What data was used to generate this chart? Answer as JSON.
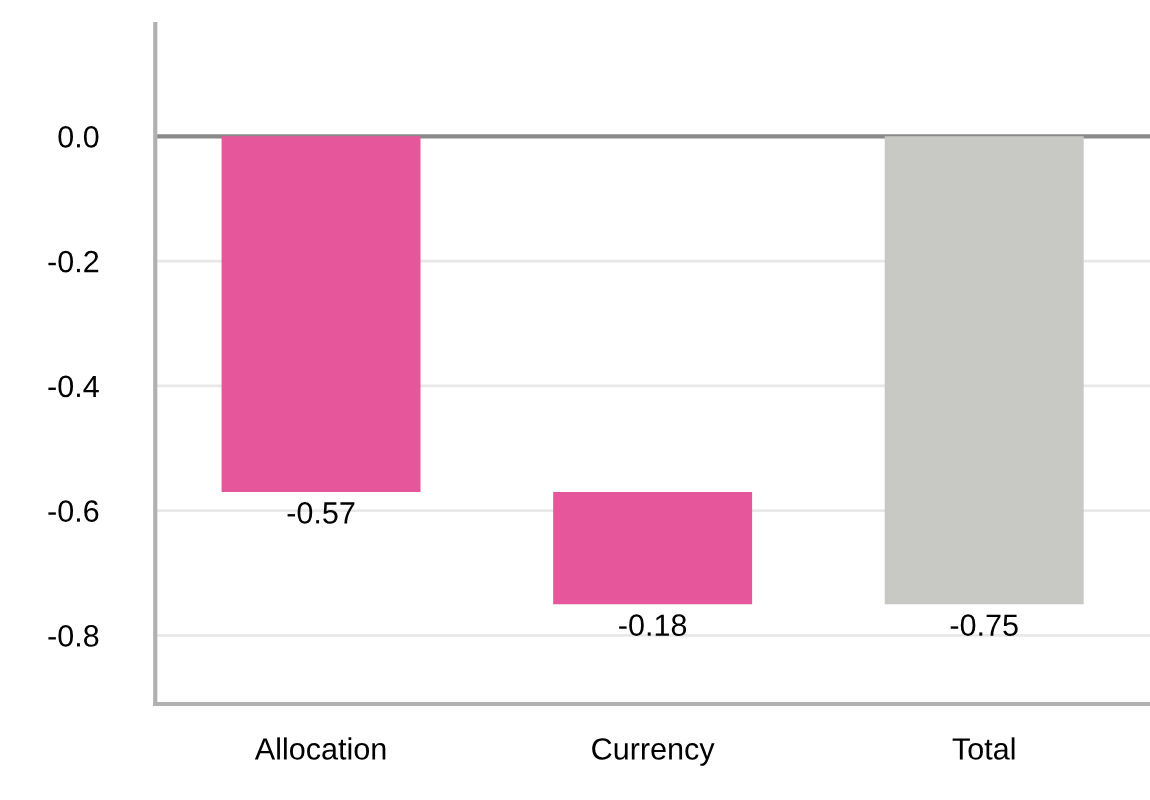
{
  "chart_data": {
    "type": "bar",
    "categories": [
      "Allocation",
      "Currency",
      "Total"
    ],
    "values": [
      -0.57,
      -0.18,
      -0.75
    ],
    "base": [
      0,
      -0.57,
      0
    ],
    "colors": [
      "#e5579a",
      "#e5579a",
      "#c8c8c5"
    ],
    "ylim": [
      -0.91,
      0.18
    ],
    "yticks": [
      {
        "value": 0,
        "label": "0.0"
      },
      -0.2,
      -0.4,
      -0.6,
      -0.8
    ],
    "grid": "y",
    "data_labels": true,
    "ref_lines": [
      {
        "axis": "y",
        "value": 0,
        "color": "#8a8a8a"
      }
    ]
  }
}
